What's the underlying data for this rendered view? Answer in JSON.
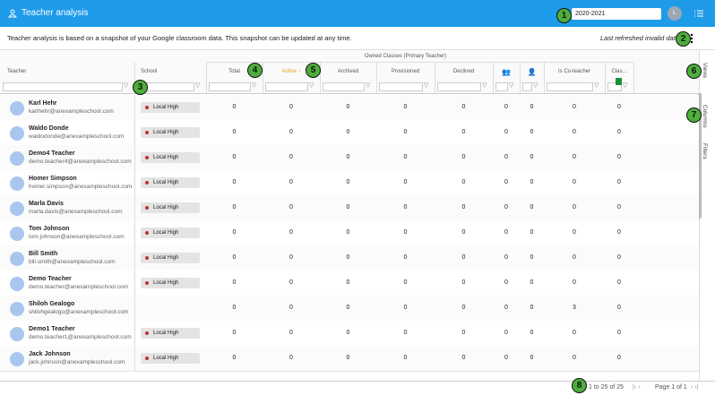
{
  "header": {
    "title": "Teacher analysis",
    "year": "2020-2021",
    "avatar": "L"
  },
  "info": {
    "text": "Teacher analysis is based on a snapshot of your Google classroom data. This snapshot can be updated at any time.",
    "refreshed": "Last refreshed invalid date"
  },
  "table": {
    "group_header": "Owned Classes (Primary Teacher)",
    "teacher_header": "Teacher",
    "school_header": "School",
    "metric_headers": [
      "Total",
      "Active",
      "Archived",
      "Provisioned",
      "Declined",
      null,
      null,
      "Is Co-teacher",
      "Clas..."
    ],
    "rows": [
      {
        "name": "Karl Hehr",
        "email": "karlhehr@anexampleschool.com",
        "school": "Local High",
        "counts": [
          0,
          0,
          0,
          0,
          0,
          0,
          0,
          0,
          0
        ]
      },
      {
        "name": "Waldo Donde",
        "email": "waldodonde@anexampleschool.com",
        "school": "Local High",
        "counts": [
          0,
          0,
          0,
          0,
          0,
          0,
          0,
          0,
          0
        ]
      },
      {
        "name": "Demo4 Teacher",
        "email": "demo.teacher4@anexampleschool.com",
        "school": "Local High",
        "counts": [
          0,
          0,
          0,
          0,
          0,
          0,
          0,
          0,
          0
        ]
      },
      {
        "name": "Homer Simpson",
        "email": "homer.simpson@anexampleschool.com",
        "school": "Local High",
        "counts": [
          0,
          0,
          0,
          0,
          0,
          0,
          0,
          0,
          0
        ]
      },
      {
        "name": "Marla Davis",
        "email": "marla.davis@anexampleschool.com",
        "school": "Local High",
        "counts": [
          0,
          0,
          0,
          0,
          0,
          0,
          0,
          0,
          0
        ]
      },
      {
        "name": "Tom Johnson",
        "email": "tom.johnson@anexampleschool.com",
        "school": "Local High",
        "counts": [
          0,
          0,
          0,
          0,
          0,
          0,
          0,
          0,
          0
        ]
      },
      {
        "name": "Bill Smith",
        "email": "bill.smith@anexampleschool.com",
        "school": "Local High",
        "counts": [
          0,
          0,
          0,
          0,
          0,
          0,
          0,
          0,
          0
        ]
      },
      {
        "name": "Demo Teacher",
        "email": "demo.teacher@anexampleschool.com",
        "school": "Local High",
        "counts": [
          0,
          0,
          0,
          0,
          0,
          0,
          0,
          0,
          0
        ]
      },
      {
        "name": "Shiloh Gealogo",
        "email": "shilohgealogo@anexampleschool.com",
        "school": null,
        "counts": [
          0,
          0,
          0,
          0,
          0,
          0,
          0,
          3,
          0
        ]
      },
      {
        "name": "Demo1 Teacher",
        "email": "demo.teacher1@anexampleschool.com",
        "school": "Local High",
        "counts": [
          0,
          0,
          0,
          0,
          0,
          0,
          0,
          0,
          0
        ]
      },
      {
        "name": "Jack Johnson",
        "email": "jack.johnson@anexampleschool.com",
        "school": "Local High",
        "counts": [
          0,
          0,
          0,
          0,
          0,
          0,
          0,
          0,
          0
        ]
      }
    ]
  },
  "side_tabs": [
    "Views",
    "Columns",
    "Filters"
  ],
  "footer": {
    "range": "1 to 25 of 25",
    "page": "Page 1 of 1"
  },
  "callouts": [
    "1",
    "2",
    "3",
    "4",
    "5",
    "6",
    "7",
    "8"
  ]
}
